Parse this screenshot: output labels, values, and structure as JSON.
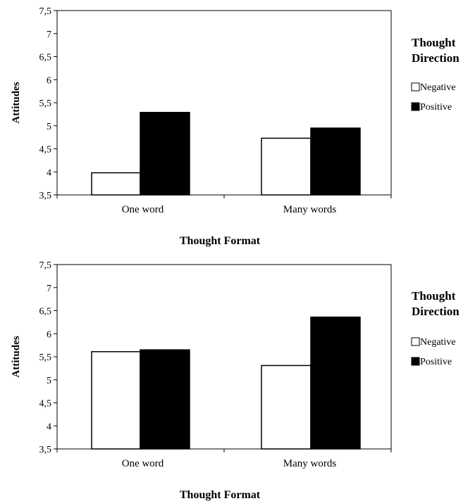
{
  "chart_data": [
    {
      "type": "bar",
      "categories": [
        "One word",
        "Many words"
      ],
      "series": [
        {
          "name": "Negative",
          "values": [
            3.98,
            4.73
          ],
          "color": "#ffffff"
        },
        {
          "name": "Positive",
          "values": [
            5.29,
            4.95
          ],
          "color": "#000000"
        }
      ],
      "xlabel": "Thought Format",
      "ylabel": "Attitudes",
      "ylim": [
        3.5,
        7.5
      ],
      "yticks": [
        "3,5",
        "4",
        "4,5",
        "5",
        "5,5",
        "6",
        "6,5",
        "7",
        "7,5"
      ],
      "legend": {
        "title_line1": "Thought",
        "title_line2": "Direction",
        "placement": "right"
      },
      "grid": false
    },
    {
      "type": "bar",
      "categories": [
        "One word",
        "Many words"
      ],
      "series": [
        {
          "name": "Negative",
          "values": [
            5.61,
            5.31
          ],
          "color": "#ffffff"
        },
        {
          "name": "Positive",
          "values": [
            5.65,
            6.36
          ],
          "color": "#000000"
        }
      ],
      "xlabel": "Thought Format",
      "ylabel": "Attitudes",
      "ylim": [
        3.5,
        7.5
      ],
      "yticks": [
        "3,5",
        "4",
        "4,5",
        "5",
        "5,5",
        "6",
        "6,5",
        "7",
        "7,5"
      ],
      "legend": {
        "title_line1": "Thought",
        "title_line2": "Direction",
        "placement": "right"
      },
      "grid": false
    }
  ]
}
